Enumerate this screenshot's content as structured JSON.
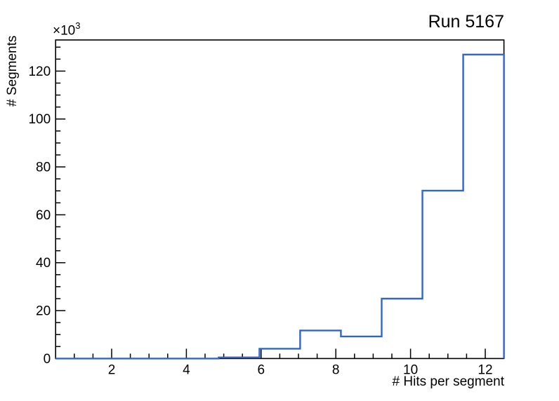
{
  "title": "Run 5167",
  "chart_data": {
    "type": "histogram-step",
    "title": "Run 5167",
    "xlabel": "# Hits per segment",
    "ylabel": "# Segments",
    "y_exponent_label": "×10",
    "y_exponent_power": "3",
    "series_color": "#3766b4",
    "axis_color": "#000000",
    "grid": false,
    "legend": null,
    "xlim": [
      0.5,
      12.5
    ],
    "ylim": [
      0,
      133000
    ],
    "bin_edges": [
      0.5,
      1.591,
      2.682,
      3.773,
      4.864,
      5.955,
      7.045,
      8.136,
      9.227,
      10.318,
      11.409,
      12.5
    ],
    "counts": [
      0,
      0,
      0,
      0,
      450,
      4100,
      11700,
      9200,
      25000,
      70100,
      126900
    ],
    "x_major_ticks": [
      2,
      4,
      6,
      8,
      10,
      12
    ],
    "x_major_tick_labels": [
      "2",
      "4",
      "6",
      "8",
      "10",
      "12"
    ],
    "x_minor_tick_step": 0.5,
    "y_major_ticks": [
      0,
      20000,
      40000,
      60000,
      80000,
      100000,
      120000
    ],
    "y_major_tick_labels": [
      "0",
      "20",
      "40",
      "60",
      "80",
      "100",
      "120"
    ],
    "y_minor_tick_step": 5000
  }
}
